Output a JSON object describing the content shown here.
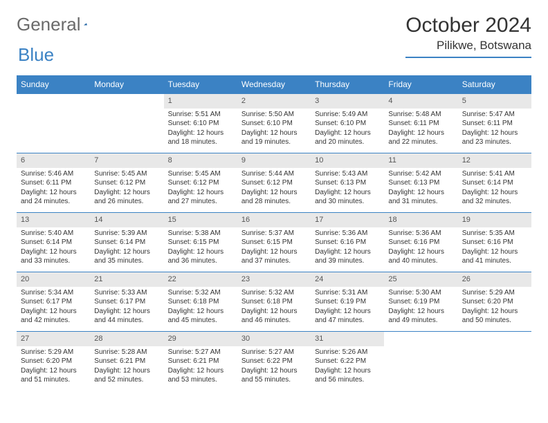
{
  "logo": {
    "word1": "General",
    "word2": "Blue"
  },
  "title": "October 2024",
  "location": "Pilikwe, Botswana",
  "colors": {
    "header_bg": "#3b82c4",
    "daynum_bg": "#e8e8e8",
    "border": "#3b82c4",
    "text": "#333333",
    "logo_gray": "#6a6a6a",
    "logo_blue": "#3b82c4"
  },
  "daysOfWeek": [
    "Sunday",
    "Monday",
    "Tuesday",
    "Wednesday",
    "Thursday",
    "Friday",
    "Saturday"
  ],
  "weeks": [
    [
      null,
      null,
      {
        "n": "1",
        "sr": "Sunrise: 5:51 AM",
        "ss": "Sunset: 6:10 PM",
        "d1": "Daylight: 12 hours",
        "d2": "and 18 minutes."
      },
      {
        "n": "2",
        "sr": "Sunrise: 5:50 AM",
        "ss": "Sunset: 6:10 PM",
        "d1": "Daylight: 12 hours",
        "d2": "and 19 minutes."
      },
      {
        "n": "3",
        "sr": "Sunrise: 5:49 AM",
        "ss": "Sunset: 6:10 PM",
        "d1": "Daylight: 12 hours",
        "d2": "and 20 minutes."
      },
      {
        "n": "4",
        "sr": "Sunrise: 5:48 AM",
        "ss": "Sunset: 6:11 PM",
        "d1": "Daylight: 12 hours",
        "d2": "and 22 minutes."
      },
      {
        "n": "5",
        "sr": "Sunrise: 5:47 AM",
        "ss": "Sunset: 6:11 PM",
        "d1": "Daylight: 12 hours",
        "d2": "and 23 minutes."
      }
    ],
    [
      {
        "n": "6",
        "sr": "Sunrise: 5:46 AM",
        "ss": "Sunset: 6:11 PM",
        "d1": "Daylight: 12 hours",
        "d2": "and 24 minutes."
      },
      {
        "n": "7",
        "sr": "Sunrise: 5:45 AM",
        "ss": "Sunset: 6:12 PM",
        "d1": "Daylight: 12 hours",
        "d2": "and 26 minutes."
      },
      {
        "n": "8",
        "sr": "Sunrise: 5:45 AM",
        "ss": "Sunset: 6:12 PM",
        "d1": "Daylight: 12 hours",
        "d2": "and 27 minutes."
      },
      {
        "n": "9",
        "sr": "Sunrise: 5:44 AM",
        "ss": "Sunset: 6:12 PM",
        "d1": "Daylight: 12 hours",
        "d2": "and 28 minutes."
      },
      {
        "n": "10",
        "sr": "Sunrise: 5:43 AM",
        "ss": "Sunset: 6:13 PM",
        "d1": "Daylight: 12 hours",
        "d2": "and 30 minutes."
      },
      {
        "n": "11",
        "sr": "Sunrise: 5:42 AM",
        "ss": "Sunset: 6:13 PM",
        "d1": "Daylight: 12 hours",
        "d2": "and 31 minutes."
      },
      {
        "n": "12",
        "sr": "Sunrise: 5:41 AM",
        "ss": "Sunset: 6:14 PM",
        "d1": "Daylight: 12 hours",
        "d2": "and 32 minutes."
      }
    ],
    [
      {
        "n": "13",
        "sr": "Sunrise: 5:40 AM",
        "ss": "Sunset: 6:14 PM",
        "d1": "Daylight: 12 hours",
        "d2": "and 33 minutes."
      },
      {
        "n": "14",
        "sr": "Sunrise: 5:39 AM",
        "ss": "Sunset: 6:14 PM",
        "d1": "Daylight: 12 hours",
        "d2": "and 35 minutes."
      },
      {
        "n": "15",
        "sr": "Sunrise: 5:38 AM",
        "ss": "Sunset: 6:15 PM",
        "d1": "Daylight: 12 hours",
        "d2": "and 36 minutes."
      },
      {
        "n": "16",
        "sr": "Sunrise: 5:37 AM",
        "ss": "Sunset: 6:15 PM",
        "d1": "Daylight: 12 hours",
        "d2": "and 37 minutes."
      },
      {
        "n": "17",
        "sr": "Sunrise: 5:36 AM",
        "ss": "Sunset: 6:16 PM",
        "d1": "Daylight: 12 hours",
        "d2": "and 39 minutes."
      },
      {
        "n": "18",
        "sr": "Sunrise: 5:36 AM",
        "ss": "Sunset: 6:16 PM",
        "d1": "Daylight: 12 hours",
        "d2": "and 40 minutes."
      },
      {
        "n": "19",
        "sr": "Sunrise: 5:35 AM",
        "ss": "Sunset: 6:16 PM",
        "d1": "Daylight: 12 hours",
        "d2": "and 41 minutes."
      }
    ],
    [
      {
        "n": "20",
        "sr": "Sunrise: 5:34 AM",
        "ss": "Sunset: 6:17 PM",
        "d1": "Daylight: 12 hours",
        "d2": "and 42 minutes."
      },
      {
        "n": "21",
        "sr": "Sunrise: 5:33 AM",
        "ss": "Sunset: 6:17 PM",
        "d1": "Daylight: 12 hours",
        "d2": "and 44 minutes."
      },
      {
        "n": "22",
        "sr": "Sunrise: 5:32 AM",
        "ss": "Sunset: 6:18 PM",
        "d1": "Daylight: 12 hours",
        "d2": "and 45 minutes."
      },
      {
        "n": "23",
        "sr": "Sunrise: 5:32 AM",
        "ss": "Sunset: 6:18 PM",
        "d1": "Daylight: 12 hours",
        "d2": "and 46 minutes."
      },
      {
        "n": "24",
        "sr": "Sunrise: 5:31 AM",
        "ss": "Sunset: 6:19 PM",
        "d1": "Daylight: 12 hours",
        "d2": "and 47 minutes."
      },
      {
        "n": "25",
        "sr": "Sunrise: 5:30 AM",
        "ss": "Sunset: 6:19 PM",
        "d1": "Daylight: 12 hours",
        "d2": "and 49 minutes."
      },
      {
        "n": "26",
        "sr": "Sunrise: 5:29 AM",
        "ss": "Sunset: 6:20 PM",
        "d1": "Daylight: 12 hours",
        "d2": "and 50 minutes."
      }
    ],
    [
      {
        "n": "27",
        "sr": "Sunrise: 5:29 AM",
        "ss": "Sunset: 6:20 PM",
        "d1": "Daylight: 12 hours",
        "d2": "and 51 minutes."
      },
      {
        "n": "28",
        "sr": "Sunrise: 5:28 AM",
        "ss": "Sunset: 6:21 PM",
        "d1": "Daylight: 12 hours",
        "d2": "and 52 minutes."
      },
      {
        "n": "29",
        "sr": "Sunrise: 5:27 AM",
        "ss": "Sunset: 6:21 PM",
        "d1": "Daylight: 12 hours",
        "d2": "and 53 minutes."
      },
      {
        "n": "30",
        "sr": "Sunrise: 5:27 AM",
        "ss": "Sunset: 6:22 PM",
        "d1": "Daylight: 12 hours",
        "d2": "and 55 minutes."
      },
      {
        "n": "31",
        "sr": "Sunrise: 5:26 AM",
        "ss": "Sunset: 6:22 PM",
        "d1": "Daylight: 12 hours",
        "d2": "and 56 minutes."
      },
      null,
      null
    ]
  ]
}
